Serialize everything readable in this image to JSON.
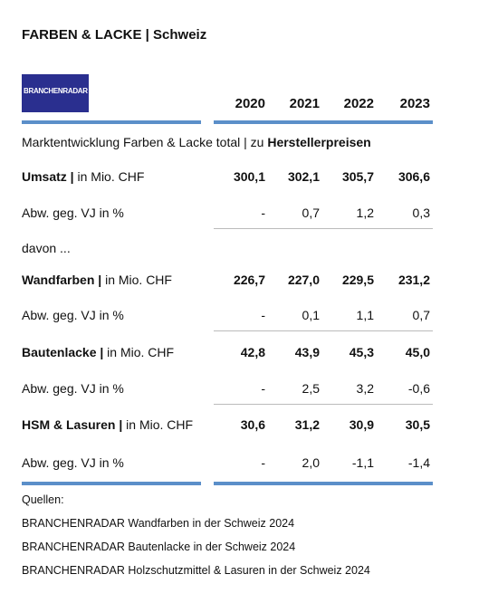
{
  "title": "FARBEN & LACKE | Schweiz",
  "logo": "BRANCHENRADAR",
  "header": {
    "years": [
      "2020",
      "2021",
      "2022",
      "2023"
    ]
  },
  "section": {
    "text": "Marktentwicklung Farben & Lacke total | zu ",
    "bold": "Herstellerpreisen"
  },
  "rows": [
    {
      "label_bold": "Umsatz |",
      "label": " in Mio. CHF",
      "values": [
        "300,1",
        "302,1",
        "305,7",
        "306,6"
      ]
    },
    {
      "label": "Abw. geg. VJ in %",
      "values": [
        "-",
        "0,7",
        "1,2",
        "0,3"
      ]
    },
    {
      "label": "davon ..."
    },
    {
      "label_bold": "Wandfarben |",
      "label": " in Mio. CHF",
      "values": [
        "226,7",
        "227,0",
        "229,5",
        "231,2"
      ]
    },
    {
      "label": "Abw. geg. VJ in %",
      "values": [
        "-",
        "0,1",
        "1,1",
        "0,7"
      ]
    },
    {
      "label_bold": "Bautenlacke |",
      "label": " in Mio. CHF",
      "values": [
        "42,8",
        "43,9",
        "45,3",
        "45,0"
      ]
    },
    {
      "label": "Abw. geg. VJ in %",
      "values": [
        "-",
        "2,5",
        "3,2",
        "-0,6"
      ]
    },
    {
      "label_bold": "HSM & Lasuren |",
      "label": " in Mio. CHF",
      "values": [
        "30,6",
        "31,2",
        "30,9",
        "30,5"
      ]
    },
    {
      "label": "Abw. geg. VJ in %",
      "values": [
        "-",
        "2,0",
        "-1,1",
        "-1,4"
      ]
    }
  ],
  "sources": {
    "heading": "Quellen:",
    "items": [
      "BRANCHENRADAR Wandfarben in der Schweiz 2024",
      "BRANCHENRADAR Bautenlacke in der Schweiz 2024",
      "BRANCHENRADAR Holzschutzmittel & Lasuren in der Schweiz 2024"
    ]
  }
}
